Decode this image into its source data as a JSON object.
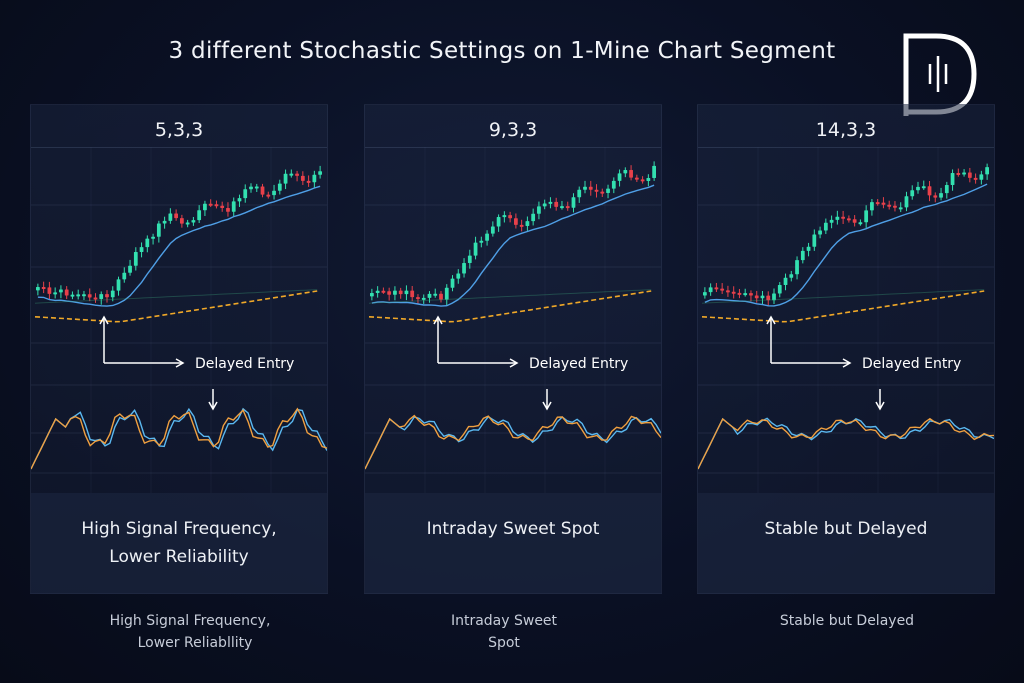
{
  "page": {
    "title": "3 different  Stochastic Settings on 1-Mine  Chart Segment"
  },
  "colors": {
    "bull": "#33e0b0",
    "bear": "#e8404a",
    "price_ma": "#4f9fe6",
    "slow_ma": "#f0a828",
    "stoch_k": "#5ab8f0",
    "stoch_d": "#f0a040",
    "annotation": "#ffffff"
  },
  "chart_data": [
    {
      "type": "candlestick",
      "setting": "5,3,3",
      "annotation": "Delayed Entry",
      "label_line1": "High Signal Frequency,",
      "label_line2": "Lower Reliability",
      "footer_line1": "High Signal Frequency,",
      "footer_line2": "Lower Reliabllity",
      "stoch_profile": "fast"
    },
    {
      "type": "candlestick",
      "setting": "9,3,3",
      "annotation": "Delayed Entry",
      "label_line1": "Intraday Sweet Spot",
      "label_line2": "",
      "footer_line1": "Intraday Sweet",
      "footer_line2": "Spot",
      "stoch_profile": "medium"
    },
    {
      "type": "candlestick",
      "setting": "14,3,3",
      "annotation": "Delayed Entry",
      "label_line1": "Stable but Delayed",
      "label_line2": "",
      "footer_line1": "Stable but Delayed",
      "footer_line2": "",
      "stoch_profile": "slow"
    }
  ]
}
